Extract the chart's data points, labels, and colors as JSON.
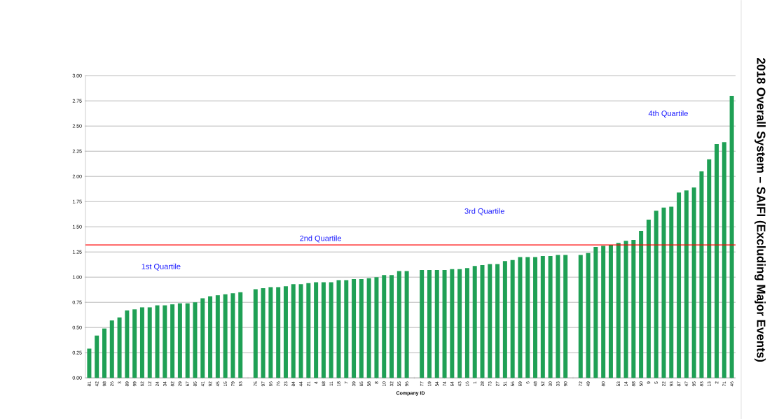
{
  "chart_data": {
    "type": "bar",
    "title": "2018 Overall System – SAIFI (Excluding Major Events)",
    "xlabel": "Company ID",
    "categories": [
      "81",
      "42",
      "98",
      "26",
      "3",
      "89",
      "99",
      "62",
      "12",
      "24",
      "34",
      "82",
      "29",
      "67",
      "85",
      "41",
      "92",
      "45",
      "15",
      "79",
      "63",
      null,
      "75",
      "97",
      "66",
      "76",
      "23",
      "84",
      "44",
      "21",
      "4",
      "68",
      "11",
      "18",
      "7",
      "39",
      "65",
      "58",
      "8",
      "10",
      "32",
      "55",
      "96",
      null,
      "77",
      "19",
      "54",
      "74",
      "64",
      "43",
      "16",
      "1",
      "28",
      "73",
      "27",
      "51",
      "56",
      "69",
      "6",
      "48",
      "52",
      "30",
      "33",
      "90",
      null,
      "72",
      "49",
      null,
      "80",
      null,
      "53",
      "14",
      "88",
      "50",
      "9",
      "5",
      "22",
      "93",
      "87",
      "47",
      "95",
      "83",
      "13",
      "2",
      "71",
      "46"
    ],
    "values": [
      0.29,
      0.42,
      0.49,
      0.57,
      0.6,
      0.67,
      0.68,
      0.7,
      0.7,
      0.72,
      0.72,
      0.73,
      0.74,
      0.74,
      0.75,
      0.79,
      0.81,
      0.82,
      0.83,
      0.84,
      0.85,
      null,
      0.88,
      0.89,
      0.9,
      0.9,
      0.91,
      0.93,
      0.93,
      0.94,
      0.95,
      0.95,
      0.95,
      0.97,
      0.97,
      0.98,
      0.98,
      0.99,
      1.0,
      1.02,
      1.02,
      1.06,
      1.06,
      null,
      1.07,
      1.07,
      1.07,
      1.07,
      1.08,
      1.08,
      1.09,
      1.11,
      1.12,
      1.13,
      1.13,
      1.16,
      1.17,
      1.2,
      1.2,
      1.2,
      1.21,
      1.21,
      1.22,
      1.22,
      null,
      1.22,
      1.24,
      1.3,
      1.31,
      1.32,
      1.34,
      1.36,
      1.37,
      1.46,
      1.57,
      1.66,
      1.69,
      1.7,
      1.84,
      1.86,
      1.89,
      2.05,
      2.17,
      2.32,
      2.34,
      2.8
    ],
    "color": "#1fa055",
    "ylim": [
      0,
      3
    ],
    "yticks": [
      {
        "value": 0,
        "label": "0.00"
      },
      {
        "value": 0.25,
        "label": "0.25"
      },
      {
        "value": 0.5,
        "label": "0.50"
      },
      {
        "value": 0.75,
        "label": "0.75"
      },
      {
        "value": 1,
        "label": "1.00"
      },
      {
        "value": 1.25,
        "label": "1.25"
      },
      {
        "value": 1.5,
        "label": "1.50"
      },
      {
        "value": 1.75,
        "label": "1.75"
      },
      {
        "value": 2,
        "label": "2.00"
      },
      {
        "value": 2.25,
        "label": "2.25"
      },
      {
        "value": 2.5,
        "label": "2.50"
      },
      {
        "value": 2.75,
        "label": "2.75"
      },
      {
        "value": 3,
        "label": "3.00"
      }
    ],
    "grid": "y",
    "ref_lines": [
      {
        "axis": "y",
        "value": 1.32,
        "color": "#ff0000"
      }
    ],
    "annotations": [
      "1st Quartile",
      "2nd Quartile",
      "3rd Quartile",
      "4th Quartile"
    ]
  }
}
